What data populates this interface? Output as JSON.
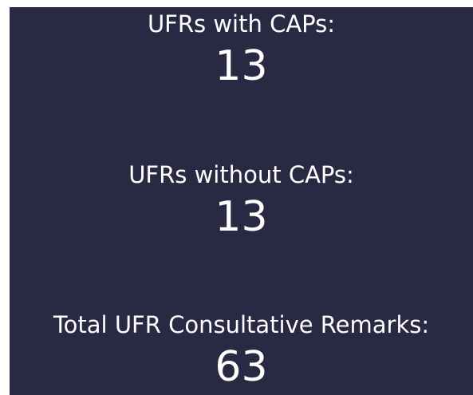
{
  "metrics": [
    {
      "label": "UFRs with CAPs:",
      "value": "13"
    },
    {
      "label": "UFRs without CAPs:",
      "value": "13"
    },
    {
      "label": "Total UFR Consultative Remarks:",
      "value": "63"
    }
  ]
}
